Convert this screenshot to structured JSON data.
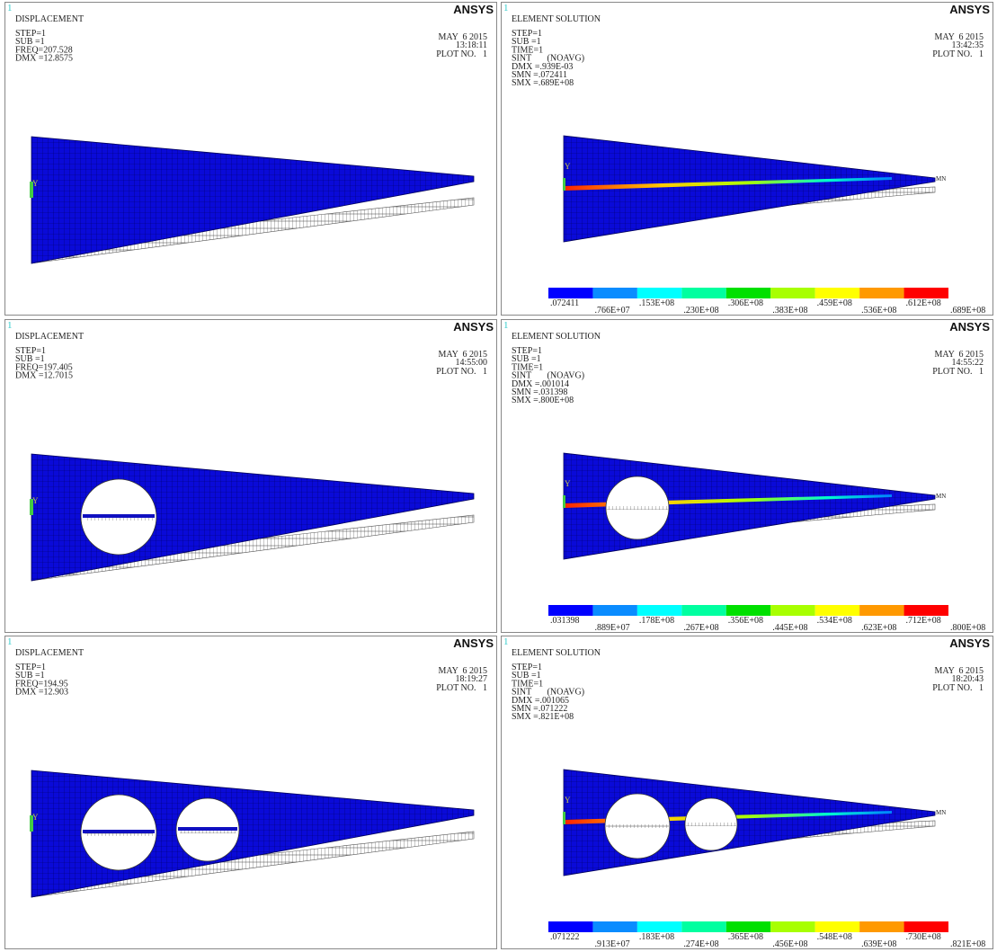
{
  "panels": [
    {
      "kind": "displacement",
      "number": "1",
      "brand": "ANSYS",
      "title": "DISPLACEMENT",
      "info": [
        "STEP=1",
        "SUB =1",
        "FREQ=207.528",
        "DMX =12.8575"
      ],
      "date": "MAY  6 2015",
      "time": "13:18:11",
      "plot": "PLOT NO.   1",
      "axis_label": "Y"
    },
    {
      "kind": "stress",
      "number": "1",
      "brand": "ANSYS",
      "title": "ELEMENT SOLUTION",
      "info": [
        "STEP=1",
        "SUB =1",
        "TIME=1",
        "SINT       (NOAVG)",
        "DMX =.939E-03",
        "SMN =.072411",
        "SMX =.689E+08"
      ],
      "date": "MAY  6 2015",
      "time": "13:42:35",
      "plot": "PLOT NO.   1",
      "axis_label": "Y",
      "min_label": "MN",
      "legend": [
        ".072411",
        ".766E+07",
        ".153E+08",
        ".230E+08",
        ".306E+08",
        ".383E+08",
        ".459E+08",
        ".536E+08",
        ".612E+08",
        ".689E+08"
      ]
    },
    {
      "kind": "displacement",
      "number": "1",
      "brand": "ANSYS",
      "title": "DISPLACEMENT",
      "info": [
        "STEP=1",
        "SUB =1",
        "FREQ=197.405",
        "DMX =12.7015"
      ],
      "date": "MAY  6 2015",
      "time": "14:55:00",
      "plot": "PLOT NO.   1",
      "axis_label": "Y"
    },
    {
      "kind": "stress",
      "number": "1",
      "brand": "ANSYS",
      "title": "ELEMENT SOLUTION",
      "info": [
        "STEP=1",
        "SUB =1",
        "TIME=1",
        "SINT       (NOAVG)",
        "DMX =.001014",
        "SMN =.031398",
        "SMX =.800E+08"
      ],
      "date": "MAY  6 2015",
      "time": "14:55:22",
      "plot": "PLOT NO.   1",
      "axis_label": "Y",
      "min_label": "MN",
      "legend": [
        ".031398",
        ".889E+07",
        ".178E+08",
        ".267E+08",
        ".356E+08",
        ".445E+08",
        ".534E+08",
        ".623E+08",
        ".712E+08",
        ".800E+08"
      ]
    },
    {
      "kind": "displacement",
      "number": "1",
      "brand": "ANSYS",
      "title": "DISPLACEMENT",
      "info": [
        "STEP=1",
        "SUB =1",
        "FREQ=194.95",
        "DMX =12.903"
      ],
      "date": "MAY  6 2015",
      "time": "18:19:27",
      "plot": "PLOT NO.   1",
      "axis_label": "Y"
    },
    {
      "kind": "stress",
      "number": "1",
      "brand": "ANSYS",
      "title": "ELEMENT SOLUTION",
      "info": [
        "STEP=1",
        "SUB =1",
        "TIME=1",
        "SINT       (NOAVG)",
        "DMX =.001065",
        "SMN =.071222",
        "SMX =.821E+08"
      ],
      "date": "MAY  6 2015",
      "time": "18:20:43",
      "plot": "PLOT NO.   1",
      "axis_label": "Y",
      "min_label": "MN",
      "legend": [
        ".071222",
        ".913E+07",
        ".183E+08",
        ".274E+08",
        ".365E+08",
        ".456E+08",
        ".548E+08",
        ".639E+08",
        ".730E+08",
        ".821E+08"
      ]
    }
  ]
}
